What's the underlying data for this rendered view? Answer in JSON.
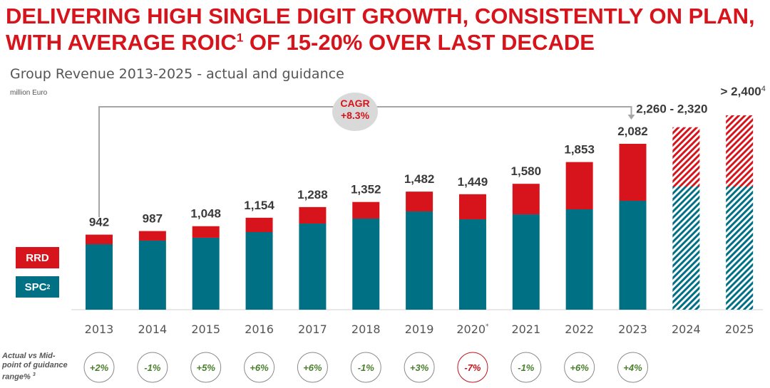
{
  "headline": {
    "line1": "DELIVERING HIGH SINGLE DIGIT GROWTH, CONSISTENTLY ON PLAN,",
    "line2_pre": "WITH AVERAGE ROIC",
    "line2_sup": "1",
    "line2_post": " OF 15-20% OVER LAST DECADE"
  },
  "colors": {
    "rrd": "#d7141b",
    "spc": "#007185",
    "positive": "#4a7f2c",
    "negative": "#c0141b"
  },
  "chart_data": {
    "type": "bar",
    "stacked": true,
    "title": "Group Revenue 2013-2025 - actual and guidance",
    "ylabel": "million Euro",
    "categories": [
      "2013",
      "2014",
      "2015",
      "2016",
      "2017",
      "2018",
      "2019",
      "2020",
      "2021",
      "2022",
      "2023",
      "2024",
      "2025"
    ],
    "category_marks": {
      "2020": "*"
    },
    "series": [
      {
        "name": "SPC",
        "superscript": "2",
        "values": [
          822,
          867,
          903,
          974,
          1081,
          1144,
          1233,
          1135,
          1197,
          1260,
          1367,
          1546,
          1546
        ]
      },
      {
        "name": "RRD",
        "values": [
          120,
          120,
          145,
          180,
          207,
          208,
          249,
          314,
          383,
          593,
          715,
          744,
          894
        ]
      }
    ],
    "hatched_categories": [
      "2024",
      "2025"
    ],
    "total_labels": [
      "942",
      "987",
      "1,048",
      "1,154",
      "1,288",
      "1,352",
      "1,482",
      "1,449",
      "1,580",
      "1,853",
      "2,082",
      "2,260 - 2,320",
      "> 2,400"
    ],
    "total_label_sups": {
      "2025": "4"
    },
    "cagr": {
      "label": "CAGR",
      "value": "+8.3%",
      "from": "2013",
      "to": "2023"
    },
    "ylim": [
      0,
      2600
    ],
    "grid": false,
    "legend": "left"
  },
  "guidance": {
    "label_line1": "Actual vs Mid-",
    "label_line2": "point of guidance",
    "label_line3": "range%",
    "label_sup": "3",
    "values": [
      "+2%",
      "-1%",
      "+5%",
      "+6%",
      "+6%",
      "-1%",
      "+3%",
      "-7%",
      "-1%",
      "+6%",
      "+4%"
    ]
  }
}
